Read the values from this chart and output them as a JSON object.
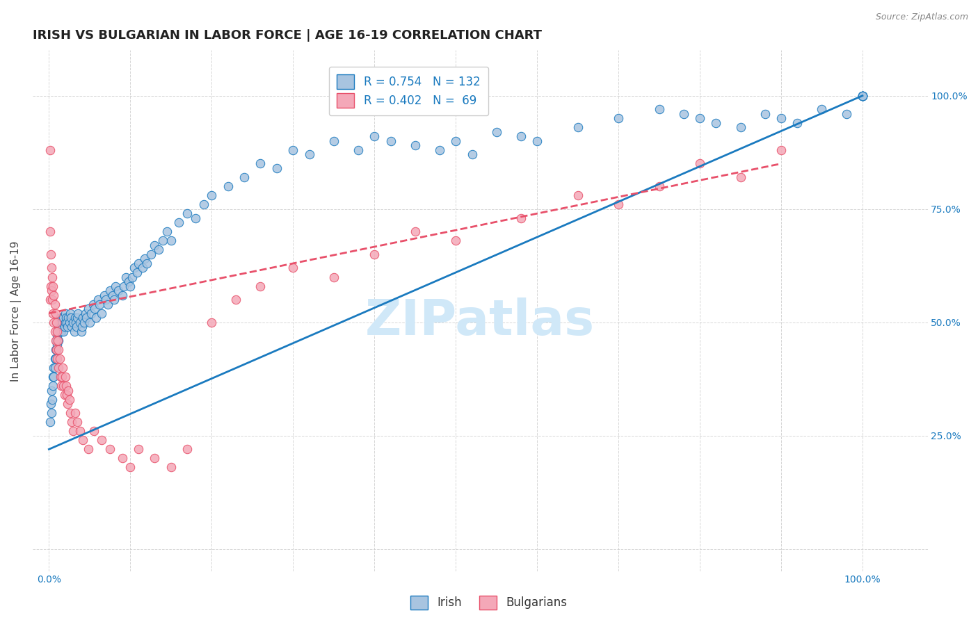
{
  "title": "IRISH VS BULGARIAN IN LABOR FORCE | AGE 16-19 CORRELATION CHART",
  "source": "Source: ZipAtlas.com",
  "xlabel": "",
  "ylabel": "In Labor Force | Age 16-19",
  "watermark": "ZIPatlas",
  "legend_irish_R": "R = 0.754",
  "legend_irish_N": "N = 132",
  "legend_bulg_R": "R = 0.402",
  "legend_bulg_N": "N =  69",
  "irish_color": "#a8c4e0",
  "bulg_color": "#f4a8b8",
  "irish_line_color": "#1a7abf",
  "bulg_line_color": "#e8506a",
  "irish_scatter": {
    "x": [
      0.001,
      0.002,
      0.003,
      0.003,
      0.004,
      0.005,
      0.005,
      0.006,
      0.006,
      0.007,
      0.007,
      0.008,
      0.008,
      0.009,
      0.009,
      0.01,
      0.01,
      0.011,
      0.012,
      0.012,
      0.013,
      0.013,
      0.014,
      0.014,
      0.015,
      0.015,
      0.016,
      0.016,
      0.017,
      0.018,
      0.018,
      0.019,
      0.02,
      0.02,
      0.021,
      0.022,
      0.023,
      0.024,
      0.025,
      0.026,
      0.027,
      0.028,
      0.03,
      0.031,
      0.032,
      0.033,
      0.034,
      0.035,
      0.036,
      0.038,
      0.04,
      0.041,
      0.042,
      0.043,
      0.045,
      0.046,
      0.048,
      0.05,
      0.052,
      0.054,
      0.056,
      0.058,
      0.06,
      0.062,
      0.065,
      0.068,
      0.07,
      0.072,
      0.075,
      0.078,
      0.08,
      0.082,
      0.085,
      0.09,
      0.092,
      0.095,
      0.098,
      0.1,
      0.102,
      0.105,
      0.108,
      0.11,
      0.115,
      0.118,
      0.12,
      0.125,
      0.13,
      0.135,
      0.14,
      0.145,
      0.15,
      0.16,
      0.17,
      0.18,
      0.19,
      0.2,
      0.22,
      0.24,
      0.26,
      0.28,
      0.3,
      0.32,
      0.35,
      0.38,
      0.4,
      0.42,
      0.45,
      0.48,
      0.5,
      0.52,
      0.55,
      0.58,
      0.6,
      0.65,
      0.7,
      0.75,
      0.78,
      0.8,
      0.82,
      0.85,
      0.88,
      0.9,
      0.92,
      0.95,
      0.98,
      1.0,
      1.0,
      1.0,
      1.0,
      1.0,
      1.0,
      1.0
    ],
    "y": [
      0.28,
      0.32,
      0.3,
      0.35,
      0.33,
      0.38,
      0.36,
      0.4,
      0.38,
      0.42,
      0.4,
      0.44,
      0.42,
      0.46,
      0.44,
      0.45,
      0.47,
      0.48,
      0.46,
      0.49,
      0.48,
      0.5,
      0.49,
      0.51,
      0.48,
      0.5,
      0.49,
      0.51,
      0.5,
      0.48,
      0.51,
      0.49,
      0.5,
      0.52,
      0.51,
      0.5,
      0.49,
      0.51,
      0.5,
      0.52,
      0.51,
      0.49,
      0.5,
      0.48,
      0.51,
      0.5,
      0.49,
      0.51,
      0.52,
      0.5,
      0.48,
      0.49,
      0.51,
      0.5,
      0.52,
      0.51,
      0.53,
      0.5,
      0.52,
      0.54,
      0.53,
      0.51,
      0.55,
      0.54,
      0.52,
      0.56,
      0.55,
      0.54,
      0.57,
      0.56,
      0.55,
      0.58,
      0.57,
      0.56,
      0.58,
      0.6,
      0.59,
      0.58,
      0.6,
      0.62,
      0.61,
      0.63,
      0.62,
      0.64,
      0.63,
      0.65,
      0.67,
      0.66,
      0.68,
      0.7,
      0.68,
      0.72,
      0.74,
      0.73,
      0.76,
      0.78,
      0.8,
      0.82,
      0.85,
      0.84,
      0.88,
      0.87,
      0.9,
      0.88,
      0.91,
      0.9,
      0.89,
      0.88,
      0.9,
      0.87,
      0.92,
      0.91,
      0.9,
      0.93,
      0.95,
      0.97,
      0.96,
      0.95,
      0.94,
      0.93,
      0.96,
      0.95,
      0.94,
      0.97,
      0.96,
      1.0,
      1.0,
      1.0,
      1.0,
      1.0,
      1.0,
      1.0
    ]
  },
  "bulg_scatter": {
    "x": [
      0.001,
      0.001,
      0.001,
      0.002,
      0.002,
      0.003,
      0.003,
      0.004,
      0.004,
      0.005,
      0.005,
      0.006,
      0.006,
      0.007,
      0.007,
      0.008,
      0.008,
      0.009,
      0.009,
      0.01,
      0.01,
      0.011,
      0.012,
      0.012,
      0.013,
      0.014,
      0.015,
      0.016,
      0.017,
      0.018,
      0.019,
      0.02,
      0.021,
      0.022,
      0.023,
      0.024,
      0.025,
      0.026,
      0.028,
      0.03,
      0.032,
      0.035,
      0.038,
      0.042,
      0.048,
      0.055,
      0.065,
      0.075,
      0.09,
      0.1,
      0.11,
      0.13,
      0.15,
      0.17,
      0.2,
      0.23,
      0.26,
      0.3,
      0.35,
      0.4,
      0.45,
      0.5,
      0.58,
      0.65,
      0.7,
      0.75,
      0.8,
      0.85,
      0.9
    ],
    "y": [
      0.88,
      0.7,
      0.55,
      0.65,
      0.58,
      0.62,
      0.57,
      0.6,
      0.55,
      0.58,
      0.52,
      0.56,
      0.5,
      0.54,
      0.48,
      0.52,
      0.46,
      0.5,
      0.44,
      0.48,
      0.42,
      0.46,
      0.44,
      0.4,
      0.42,
      0.38,
      0.36,
      0.38,
      0.4,
      0.36,
      0.34,
      0.38,
      0.36,
      0.34,
      0.32,
      0.35,
      0.33,
      0.3,
      0.28,
      0.26,
      0.3,
      0.28,
      0.26,
      0.24,
      0.22,
      0.26,
      0.24,
      0.22,
      0.2,
      0.18,
      0.22,
      0.2,
      0.18,
      0.22,
      0.5,
      0.55,
      0.58,
      0.62,
      0.6,
      0.65,
      0.7,
      0.68,
      0.73,
      0.78,
      0.76,
      0.8,
      0.85,
      0.82,
      0.88
    ]
  },
  "irish_trend_x": [
    0.0,
    1.0
  ],
  "irish_trend_y": [
    0.22,
    1.0
  ],
  "bulg_trend_x": [
    0.0,
    0.9
  ],
  "bulg_trend_y": [
    0.52,
    0.85
  ],
  "xlim": [
    -0.02,
    1.08
  ],
  "ylim": [
    -0.05,
    1.1
  ],
  "xticks": [
    0.0,
    0.1,
    0.2,
    0.3,
    0.4,
    0.5,
    0.6,
    0.7,
    0.8,
    0.9,
    1.0
  ],
  "xticklabels": [
    "0.0%",
    "",
    "",
    "",
    "",
    "",
    "",
    "",
    "",
    "",
    "100.0%"
  ],
  "ytick_positions": [
    0.0,
    0.25,
    0.5,
    0.75,
    1.0
  ],
  "ytick_labels_right": [
    "",
    "25.0%",
    "50.0%",
    "75.0%",
    "100.0%"
  ],
  "grid_color": "#cccccc",
  "bg_color": "#ffffff",
  "title_fontsize": 13,
  "axis_label_fontsize": 11,
  "tick_fontsize": 10,
  "source_fontsize": 9,
  "watermark_color": "#d0e8f8",
  "watermark_fontsize": 52
}
